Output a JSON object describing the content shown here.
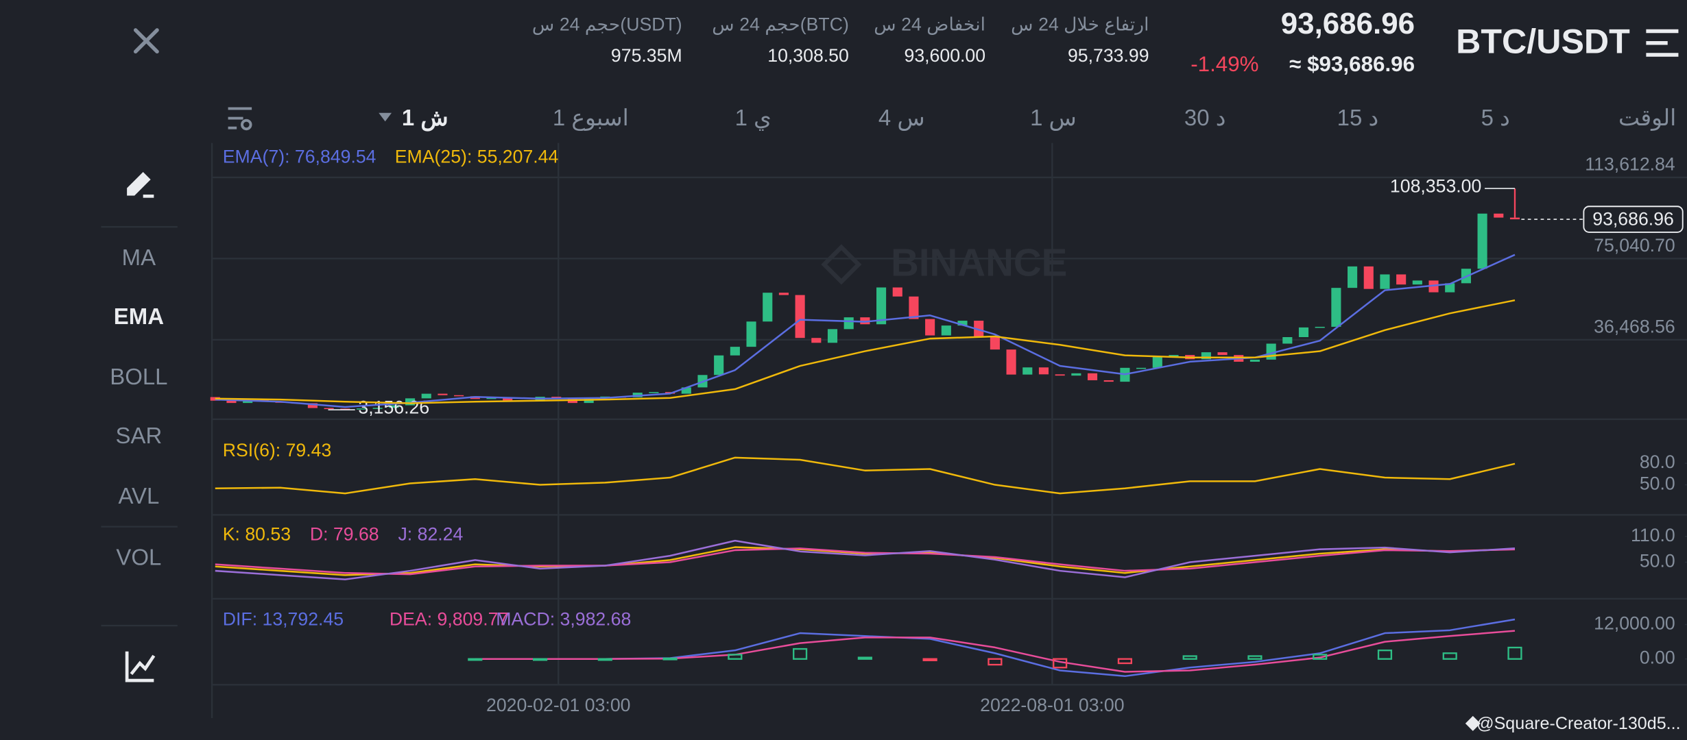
{
  "header": {
    "pair": "BTC/USDT",
    "price": "93,686.96",
    "price_usd": "≈ $93,686.96",
    "change": "-1.49%",
    "stats": [
      {
        "label": "ارتفاع خلال 24 س",
        "value": "95,733.99"
      },
      {
        "label": "انخفاض 24 س",
        "value": "93,600.00"
      },
      {
        "label": "حجم 24 س(BTC)",
        "value": "10,308.50"
      },
      {
        "label": "حجم 24 س(USDT)",
        "value": "975.35M"
      }
    ]
  },
  "timeframes": [
    "الوقت",
    "5 د",
    "15 د",
    "30 د",
    "1 س",
    "4 س",
    "1 ي",
    "1 اسبوع",
    "1 ش"
  ],
  "menu": [
    "MA",
    "EMA",
    "BOLL",
    "SAR",
    "AVL",
    "VOL"
  ],
  "watermark": "BINANCE",
  "credit": "@Square-Creator-130d5...",
  "chart_data": [
    {
      "type": "candlestick",
      "up_color": "#2ebd85",
      "down_color": "#f6465d",
      "grid": true,
      "ylim": [
        -1330,
        129970
      ],
      "yticks": [
        {
          "value": 113612.84,
          "label": "113,612.84"
        },
        {
          "value": 75040.7,
          "label": "75,040.70"
        },
        {
          "value": 36468.56,
          "label": "36,468.56"
        }
      ],
      "x_tick_labels": [
        "2020-02-01 03:00",
        "2022-08-01 03:00"
      ],
      "open": [
        9200,
        7500,
        6400,
        7700,
        7000,
        6600,
        6300,
        4000,
        3700,
        3400,
        3800,
        4100,
        5300,
        8600,
        10800,
        10100,
        9600,
        8300,
        9200,
        7600,
        7200,
        9350,
        8600,
        6400,
        8600,
        9450,
        9100,
        11300,
        11600,
        10800,
        13800,
        19700,
        29000,
        33100,
        45100,
        58800,
        57700,
        37300,
        35000,
        41500,
        47100,
        43800,
        61300,
        57000,
        46300,
        38500,
        43200,
        45500,
        37700,
        31800,
        19900,
        23300,
        20000,
        19400,
        20500,
        17200,
        16500,
        23100,
        23100,
        28500,
        29200,
        27200,
        30500,
        29200,
        26000,
        27000,
        34600,
        37700,
        42300,
        42600,
        61100,
        71300,
        60600,
        67500,
        62700,
        64600,
        59000,
        63300,
        70200,
        96400,
        94500
      ],
      "close": [
        7500,
        6400,
        7700,
        7000,
        6600,
        6300,
        4000,
        3700,
        3400,
        3800,
        4100,
        5300,
        8600,
        10800,
        10100,
        9600,
        8300,
        9200,
        7600,
        7200,
        9350,
        8600,
        6400,
        8600,
        9450,
        9100,
        11300,
        11600,
        10800,
        13800,
        19700,
        29000,
        33100,
        45100,
        58800,
        57700,
        37300,
        35000,
        41500,
        47100,
        43800,
        61300,
        57000,
        46300,
        38500,
        43200,
        45500,
        37700,
        31800,
        19900,
        23300,
        20000,
        19400,
        20500,
        17200,
        16500,
        23100,
        23100,
        28500,
        29200,
        27200,
        30500,
        29200,
        26000,
        27000,
        34600,
        37700,
        42300,
        42600,
        61100,
        71300,
        60600,
        67500,
        62700,
        64600,
        59000,
        63300,
        70200,
        96400,
        94500,
        93686.96
      ],
      "max": {
        "value": 108353,
        "label": "108,353.00"
      },
      "min": {
        "value": 3156.26,
        "label": "3,156.26"
      },
      "last": {
        "value": 93686.96,
        "label": "93,686.96"
      },
      "series": [
        {
          "legend": "EMA(7): 76,849.54",
          "color": "#5b6ee1",
          "values": [
            8000,
            7000,
            4500,
            6500,
            9300,
            8500,
            8800,
            10900,
            22000,
            46000,
            45000,
            48000,
            39000,
            24000,
            20000,
            26000,
            28000,
            36000,
            60000,
            63000,
            76849.54
          ]
        },
        {
          "legend": "EMA(25): 55,207.44",
          "color": "#f0b90b",
          "values": [
            8500,
            8000,
            7000,
            6300,
            7000,
            7500,
            8000,
            8800,
            13000,
            24000,
            31000,
            37000,
            38000,
            34000,
            29000,
            28000,
            28000,
            31000,
            41000,
            49000,
            55207.44
          ]
        }
      ]
    },
    {
      "type": "line",
      "ylim": [
        9.5,
        138.5
      ],
      "yticks": [
        {
          "value": 80,
          "label": "80.0"
        },
        {
          "value": 50,
          "label": "50.0"
        }
      ],
      "series": [
        {
          "legend": "RSI(6): 79.43",
          "color": "#f0b90b",
          "values": [
            45,
            46,
            38,
            52,
            58,
            50,
            53,
            60,
            88,
            85,
            70,
            72,
            50,
            38,
            45,
            55,
            55,
            72,
            60,
            58,
            79.43
          ]
        }
      ]
    },
    {
      "type": "line",
      "ylim": [
        -35,
        155
      ],
      "yticks": [
        {
          "value": 110,
          "label": "110.0"
        },
        {
          "value": 50,
          "label": "50.0"
        }
      ],
      "series": [
        {
          "legend": "K: 80.53",
          "color": "#f0b90b",
          "values": [
            40,
            30,
            20,
            25,
            45,
            40,
            42,
            55,
            85,
            80,
            70,
            72,
            60,
            40,
            25,
            40,
            55,
            70,
            80,
            75,
            80.53
          ]
        },
        {
          "legend": "D: 79.68",
          "color": "#e84d9a",
          "values": [
            45,
            35,
            25,
            22,
            40,
            42,
            42,
            50,
            78,
            82,
            72,
            70,
            62,
            45,
            30,
            35,
            50,
            65,
            78,
            76,
            79.68
          ]
        },
        {
          "legend": "J: 82.24",
          "color": "#9b6fd8",
          "values": [
            30,
            20,
            10,
            30,
            55,
            35,
            42,
            65,
            100,
            75,
            66,
            76,
            56,
            30,
            15,
            50,
            65,
            80,
            84,
            73,
            82.24
          ]
        }
      ]
    },
    {
      "type": "line",
      "ylim": [
        -9000,
        19875
      ],
      "up_color": "#2ebd85",
      "down_color": "#f6465d",
      "yticks": [
        {
          "value": 12000,
          "label": "12,000.00"
        },
        {
          "value": 0,
          "label": "0.00"
        }
      ],
      "series": [
        {
          "legend": "DIF: 13,792.45",
          "color": "#5b6ee1",
          "values": [
            null,
            null,
            null,
            null,
            0,
            0,
            0,
            300,
            3000,
            9000,
            8000,
            7000,
            2000,
            -4000,
            -6000,
            -3000,
            -1000,
            2000,
            9000,
            10000,
            13792.45
          ]
        },
        {
          "legend": "DEA: 9,809.77",
          "color": "#e84d9a",
          "values": [
            null,
            null,
            null,
            null,
            0,
            0,
            0,
            100,
            1500,
            5500,
            7500,
            7500,
            4000,
            -1000,
            -4500,
            -4000,
            -2000,
            500,
            6000,
            8000,
            9809.77
          ]
        },
        {
          "legend": "MACD: 3,982.68",
          "color": "#9b6fd8",
          "kind": "bar",
          "values": [
            null,
            null,
            null,
            null,
            0,
            0,
            0,
            200,
            1500,
            3500,
            500,
            -500,
            -2000,
            -3000,
            -1500,
            1000,
            1000,
            1500,
            3000,
            2000,
            3982.68
          ]
        }
      ]
    }
  ]
}
